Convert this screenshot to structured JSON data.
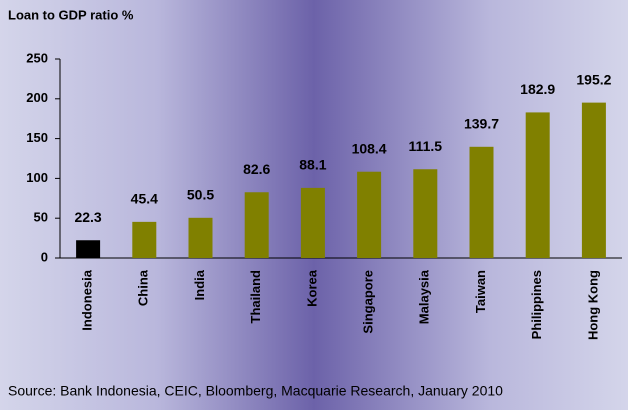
{
  "chart_data": {
    "type": "bar",
    "y_label": "Loan to GDP ratio %",
    "source": "Source: Bank Indonesia, CEIC, Bloomberg, Macquarie Research, January 2010",
    "categories": [
      "Indonesia",
      "China",
      "India",
      "Thailand",
      "Korea",
      "Singapore",
      "Malaysia",
      "Taiwan",
      "Philippines",
      "Hong Kong"
    ],
    "values": [
      22.3,
      45.4,
      50.5,
      82.6,
      88.1,
      108.4,
      111.5,
      139.7,
      182.9,
      195.2
    ],
    "colors": [
      "#000000",
      "#808000",
      "#808000",
      "#808000",
      "#808000",
      "#808000",
      "#808000",
      "#808000",
      "#808000",
      "#808000"
    ],
    "ylim": [
      0,
      250
    ],
    "yticks": [
      0,
      50,
      100,
      150,
      200,
      250
    ],
    "grid": false
  }
}
